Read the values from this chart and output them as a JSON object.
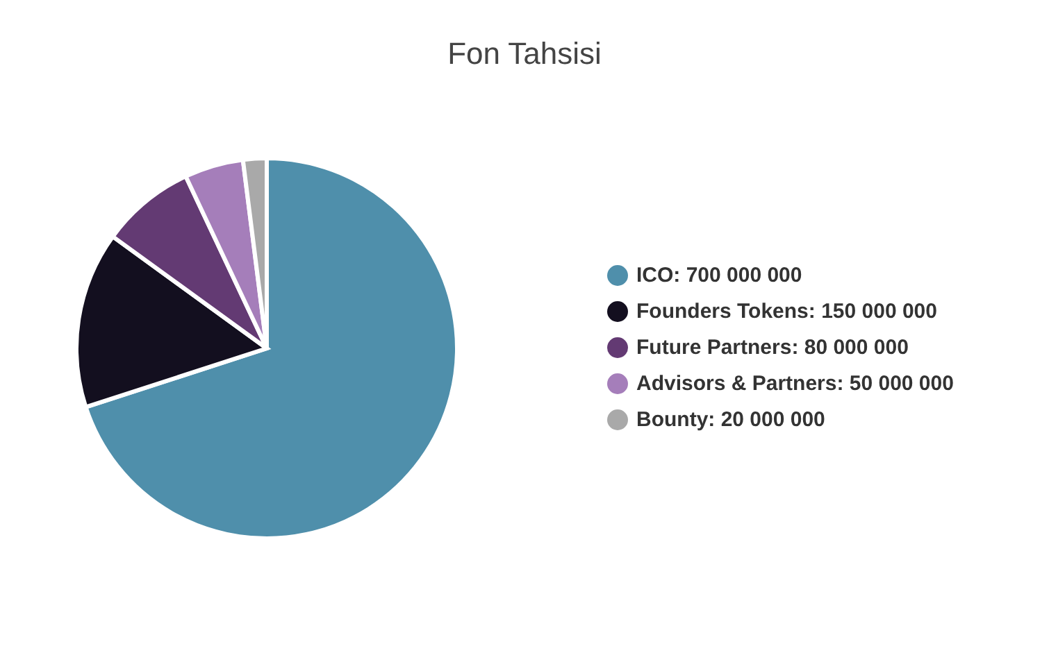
{
  "chart_data": {
    "type": "pie",
    "title": "Fon Tahsisi",
    "categories": [
      "ICO: 700 000 000",
      "Founders Tokens: 150 000 000",
      "Future Partners: 80 000 000",
      "Advisors & Partners: 50 000 000",
      "Bounty: 20 000 000"
    ],
    "values": [
      700000000,
      150000000,
      80000000,
      50000000,
      20000000
    ],
    "colors": [
      "#4f8fab",
      "#130f1f",
      "#633a73",
      "#a57eba",
      "#a9a9a9"
    ],
    "legend": "right"
  }
}
